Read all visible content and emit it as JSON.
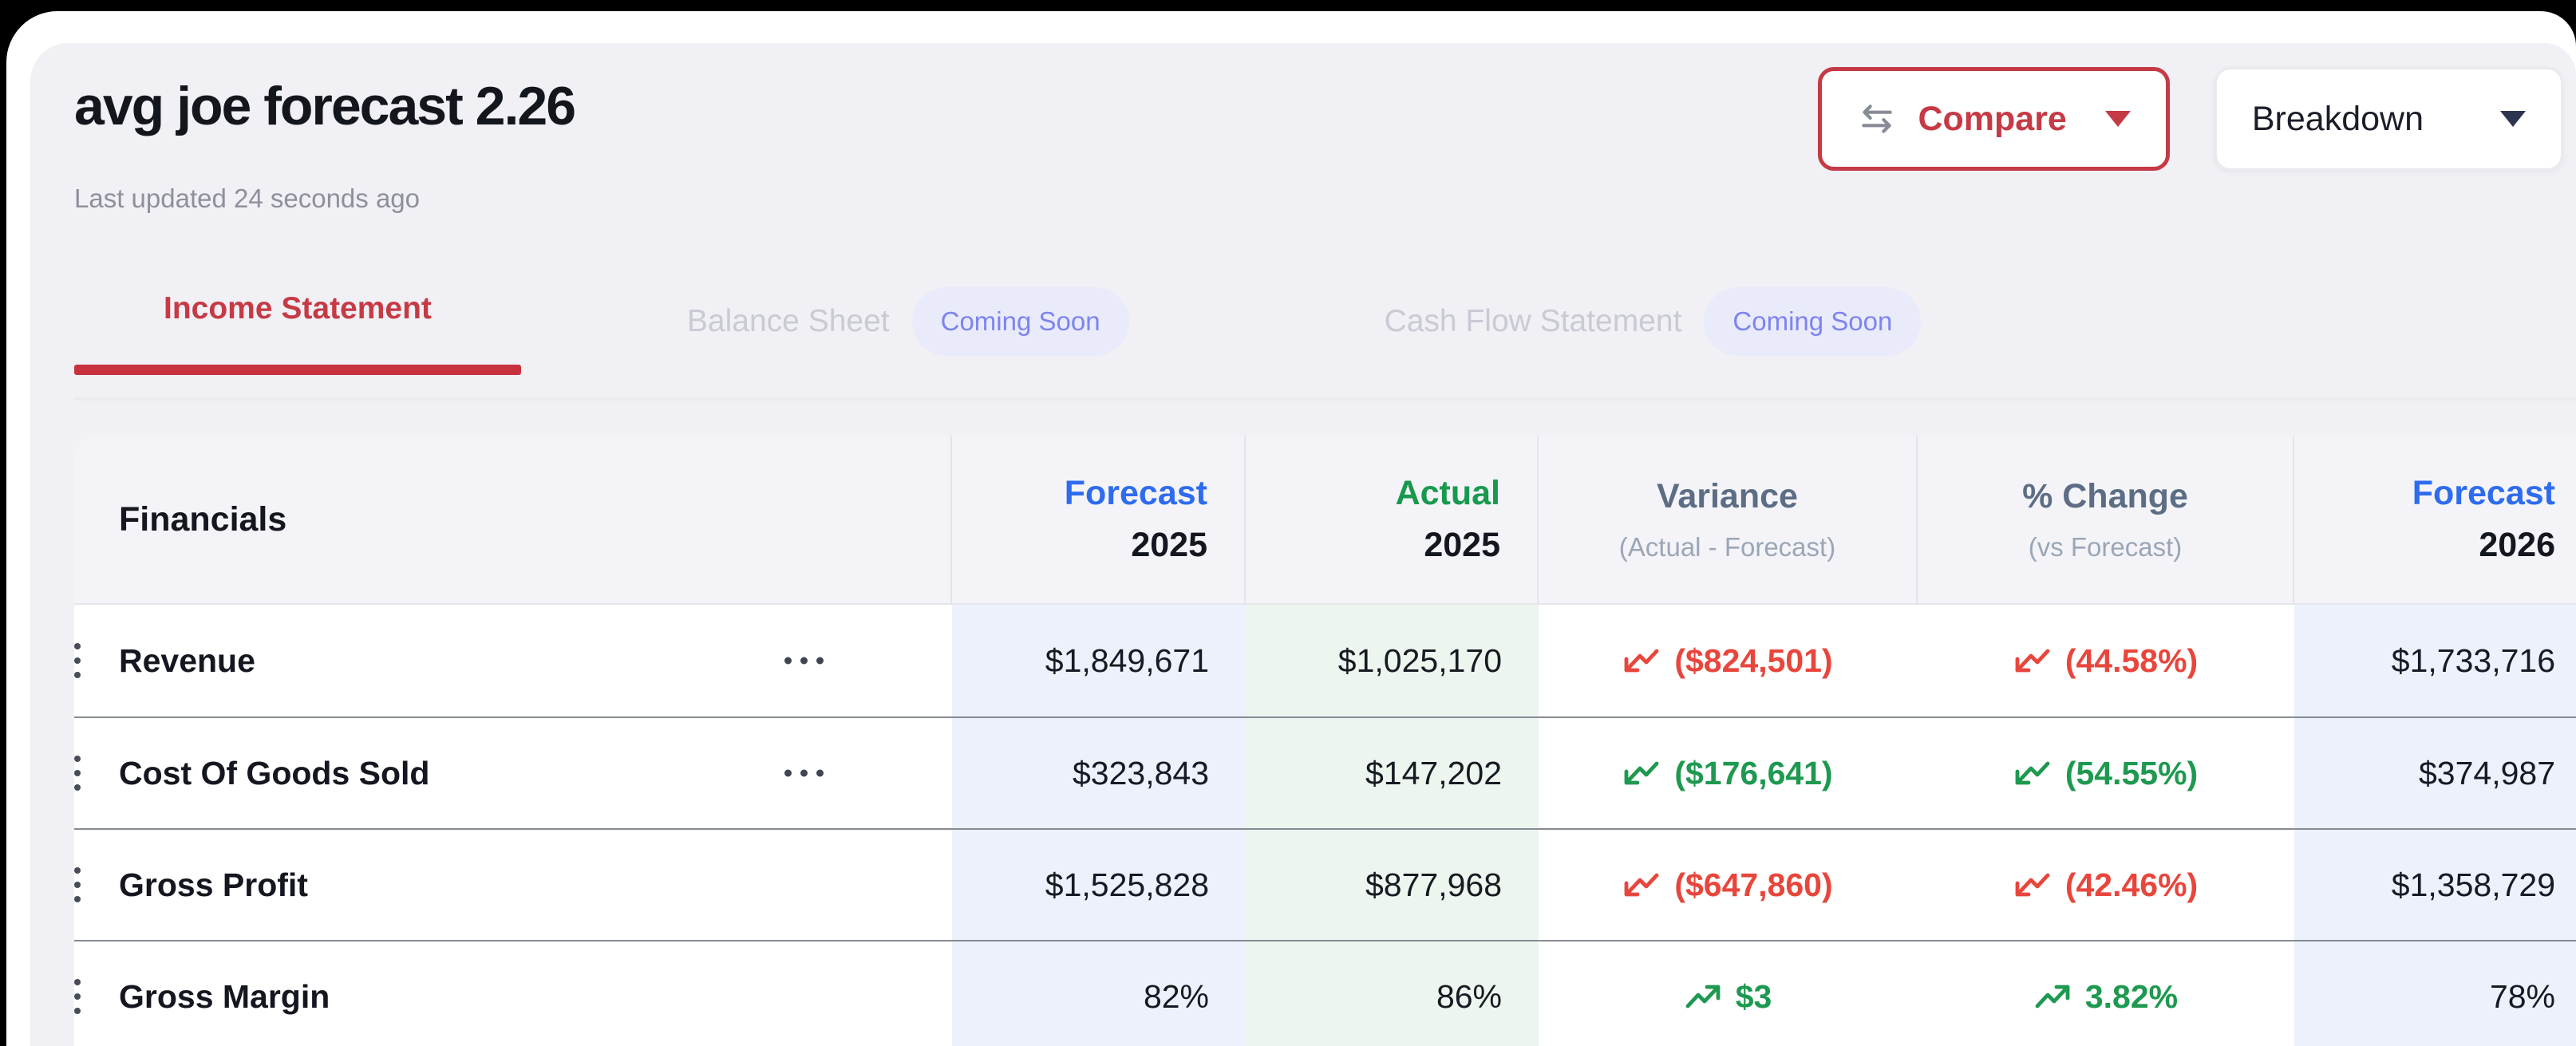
{
  "colors": {
    "accent_red": "#c63a45",
    "underline_red": "#c8323e",
    "negative": "#e8463c",
    "positive": "#1e9950",
    "forecast_blue": "#2e6bee",
    "actual_green": "#189a4e",
    "badge_bg": "#e9ebfb",
    "badge_text": "#7d84ef",
    "tint_forecast": "#edf1fb",
    "tint_actual": "#edf5ef"
  },
  "header": {
    "title": "avg joe forecast 2.26",
    "last_updated": "Last updated 24 seconds ago",
    "compare_label": "Compare",
    "breakdown_label": "Breakdown"
  },
  "tabs": [
    {
      "label": "Income Statement",
      "active": true
    },
    {
      "label": "Balance Sheet",
      "badge": "Coming Soon"
    },
    {
      "label": "Cash Flow Statement",
      "badge": "Coming Soon"
    }
  ],
  "table": {
    "financials_label": "Financials",
    "columns": [
      {
        "line1": "Forecast",
        "line2": "2025"
      },
      {
        "line1": "Actual",
        "line2": "2025"
      },
      {
        "line1": "Variance",
        "line2": "(Actual - Forecast)"
      },
      {
        "line1": "% Change",
        "line2": "(vs Forecast)"
      },
      {
        "line1": "Forecast",
        "line2": "2026"
      }
    ],
    "rows": [
      {
        "label": "Revenue",
        "has_menu": true,
        "f2025": "$1,849,671",
        "a2025": "$1,025,170",
        "variance": {
          "text": "($824,501)",
          "trend": "down",
          "tone": "neg"
        },
        "pct": {
          "text": "(44.58%)",
          "trend": "down",
          "tone": "neg"
        },
        "f2026": "$1,733,716"
      },
      {
        "label": "Cost Of Goods Sold",
        "has_menu": true,
        "f2025": "$323,843",
        "a2025": "$147,202",
        "variance": {
          "text": "($176,641)",
          "trend": "down",
          "tone": "pos"
        },
        "pct": {
          "text": "(54.55%)",
          "trend": "down",
          "tone": "pos"
        },
        "f2026": "$374,987"
      },
      {
        "label": "Gross Profit",
        "has_menu": false,
        "f2025": "$1,525,828",
        "a2025": "$877,968",
        "variance": {
          "text": "($647,860)",
          "trend": "down",
          "tone": "neg"
        },
        "pct": {
          "text": "(42.46%)",
          "trend": "down",
          "tone": "neg"
        },
        "f2026": "$1,358,729"
      },
      {
        "label": "Gross Margin",
        "has_menu": false,
        "f2025": "82%",
        "a2025": "86%",
        "variance": {
          "text": "$3",
          "trend": "up",
          "tone": "pos"
        },
        "pct": {
          "text": "3.82%",
          "trend": "up",
          "tone": "pos"
        },
        "f2026": "78%"
      }
    ]
  }
}
